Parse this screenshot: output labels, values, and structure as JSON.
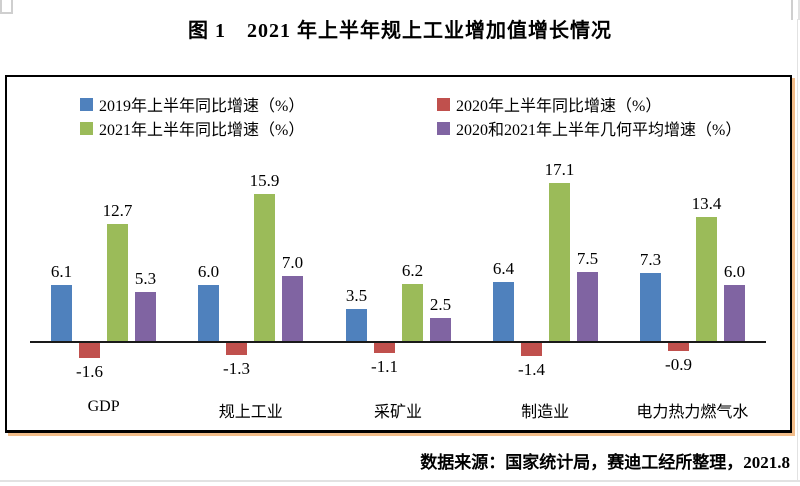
{
  "page": {
    "title": "图 1　2021 年上半年规上工业增加值增长情况",
    "source_note": "数据来源：国家统计局，赛迪工经所整理，2021.8"
  },
  "chart_data": {
    "type": "bar",
    "title": "图 1　2021 年上半年规上工业增加值增长情况",
    "categories": [
      "GDP",
      "规上工业",
      "采矿业",
      "制造业",
      "电力热力燃气水"
    ],
    "series": [
      {
        "name": "2019年上半年同比增速（%）",
        "color": "#4f81bd",
        "values": [
          6.1,
          6.0,
          3.5,
          6.4,
          7.3
        ]
      },
      {
        "name": "2020年上半年同比增速（%）",
        "color": "#c0504d",
        "values": [
          -1.6,
          -1.3,
          -1.1,
          -1.4,
          -0.9
        ]
      },
      {
        "name": "2021年上半年同比增速（%）",
        "color": "#9bbb59",
        "values": [
          12.7,
          15.9,
          6.2,
          17.1,
          13.4
        ]
      },
      {
        "name": "2020和2021年上半年几何平均增速（%）",
        "color": "#8064a2",
        "values": [
          5.3,
          7.0,
          2.5,
          7.5,
          6.0
        ]
      }
    ],
    "legend_position": "top-inside",
    "gridlines": false,
    "y_axis_visible": false,
    "value_labels": true,
    "axis_color": "#1a1a1a",
    "frame_shadow_color": "#f2bd8a",
    "source_note": "数据来源：国家统计局，赛迪工经所整理，2021.8"
  }
}
